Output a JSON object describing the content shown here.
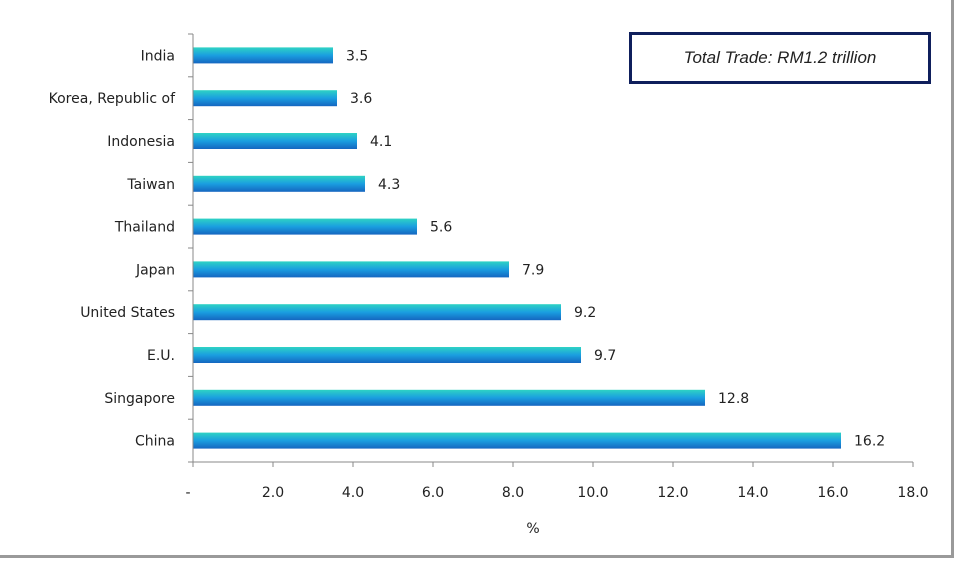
{
  "chart_data": {
    "type": "bar",
    "orientation": "horizontal",
    "categories": [
      "India",
      "Korea, Republic of",
      "Indonesia",
      "Taiwan",
      "Thailand",
      "Japan",
      "United States",
      "E.U.",
      "Singapore",
      "China"
    ],
    "values": [
      3.5,
      3.6,
      4.1,
      4.3,
      5.6,
      7.9,
      9.2,
      9.7,
      12.8,
      16.2
    ],
    "value_labels": [
      "3.5",
      "3.6",
      "4.1",
      "4.3",
      "5.6",
      "7.9",
      "9.2",
      "9.7",
      "12.8",
      "16.2"
    ],
    "xlabel": "%",
    "ylabel": "",
    "xlim": [
      0,
      18
    ],
    "xticks": [
      0,
      2,
      4,
      6,
      8,
      10,
      12,
      14,
      16,
      18
    ],
    "xtick_labels": [
      "-",
      "2.0",
      "4.0",
      "6.0",
      "8.0",
      "10.0",
      "12.0",
      "14.0",
      "16.0",
      "18.0"
    ],
    "grid": false,
    "annotation": "Total Trade:  RM1.2 trillion",
    "colors": {
      "bar_top": "#2ed3c4",
      "bar_mid": "#1a9ee0",
      "bar_bottom": "#1566c0",
      "box_border": "#0f1f5c"
    }
  }
}
